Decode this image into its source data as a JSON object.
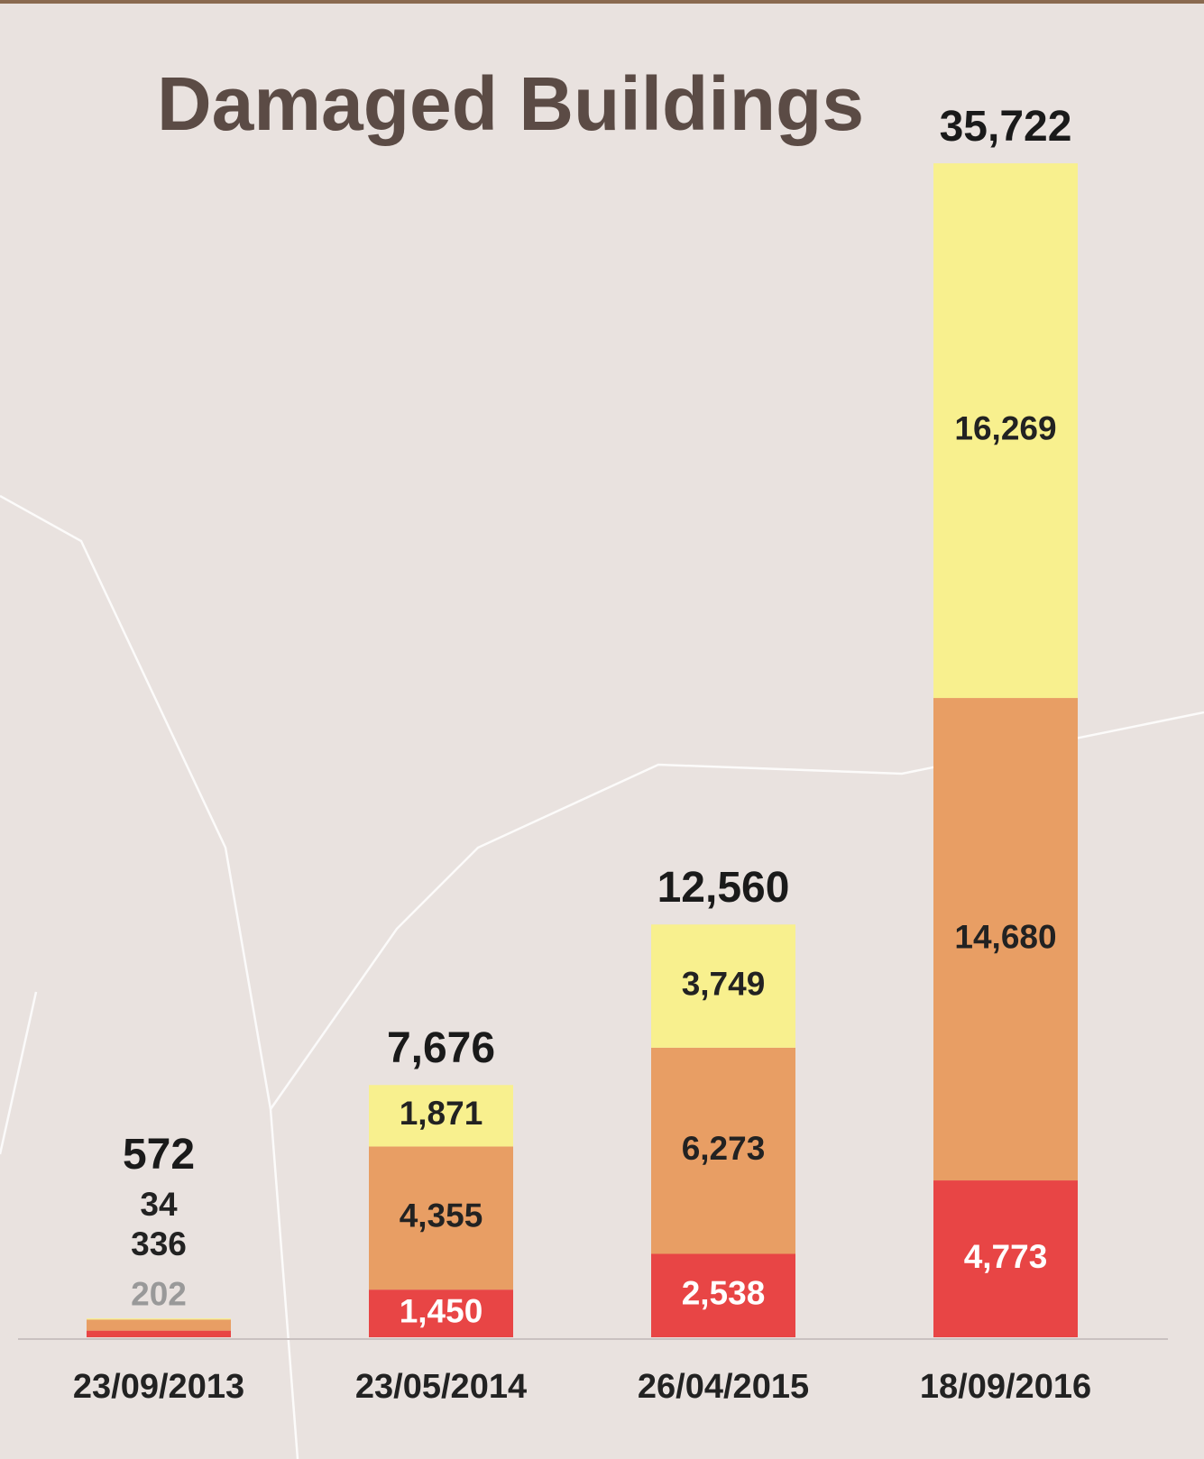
{
  "chart_data": {
    "type": "stacked_bar",
    "title": "Damaged Buildings",
    "categories": [
      "23/09/2013",
      "23/05/2014",
      "26/04/2015",
      "18/09/2016"
    ],
    "series": [
      {
        "color": "#e84545",
        "values": [
          202,
          1450,
          2538,
          4773
        ],
        "value_labels": [
          "202",
          "1,450",
          "2,538",
          "4,773"
        ]
      },
      {
        "color": "#e89e64",
        "values": [
          336,
          4355,
          6273,
          14680
        ],
        "value_labels": [
          "336",
          "4,355",
          "6,273",
          "14,680"
        ]
      },
      {
        "color": "#f8f08e",
        "values": [
          34,
          1871,
          3749,
          16269
        ],
        "value_labels": [
          "34",
          "1,871",
          "3,749",
          "16,269"
        ]
      }
    ],
    "totals": {
      "values": [
        572,
        7676,
        12560,
        35722
      ],
      "value_labels": [
        "572",
        "7,676",
        "12,560",
        "35,722"
      ]
    },
    "ylim": [
      0,
      36000
    ]
  }
}
